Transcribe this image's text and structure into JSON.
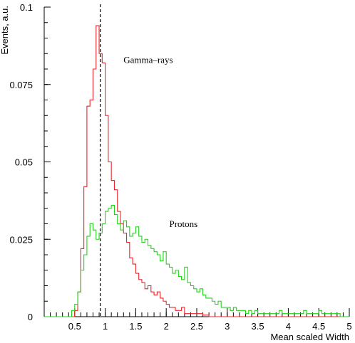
{
  "chart_data": {
    "type": "line",
    "style": "step-histogram",
    "title": "",
    "xlabel": "Mean scaled Width",
    "ylabel": "Events, a.u.",
    "xlim": [
      0,
      5
    ],
    "ylim": [
      0,
      0.1
    ],
    "x_ticks": [
      "0.5",
      "1",
      "1.5",
      "2",
      "2.5",
      "3",
      "3.5",
      "4",
      "4.5",
      "5"
    ],
    "y_ticks": [
      "0",
      "0.025",
      "0.05",
      "0.075",
      "0.1"
    ],
    "grid": false,
    "legend": "none",
    "bin_width": 0.05,
    "x": [
      0.025,
      0.075,
      0.125,
      0.175,
      0.225,
      0.275,
      0.325,
      0.375,
      0.425,
      0.475,
      0.525,
      0.575,
      0.625,
      0.675,
      0.725,
      0.775,
      0.825,
      0.875,
      0.925,
      0.975,
      1.025,
      1.075,
      1.125,
      1.175,
      1.225,
      1.275,
      1.325,
      1.375,
      1.425,
      1.475,
      1.525,
      1.575,
      1.625,
      1.675,
      1.725,
      1.775,
      1.825,
      1.875,
      1.925,
      1.975,
      2.025,
      2.075,
      2.125,
      2.175,
      2.225,
      2.275,
      2.325,
      2.375,
      2.425,
      2.475,
      2.525,
      2.575,
      2.625,
      2.675,
      2.725,
      2.775,
      2.825,
      2.875,
      2.925,
      2.975,
      3.025,
      3.075,
      3.125,
      3.175,
      3.225,
      3.275,
      3.325,
      3.375,
      3.425,
      3.475,
      3.525,
      3.575,
      3.625,
      3.675,
      3.725,
      3.775,
      3.825,
      3.875,
      3.925,
      3.975,
      4.025,
      4.075,
      4.125,
      4.175,
      4.225,
      4.275,
      4.325,
      4.375,
      4.425,
      4.475,
      4.525,
      4.575,
      4.625,
      4.675,
      4.725,
      4.775,
      4.825,
      4.875,
      4.925,
      4.975
    ],
    "series": [
      {
        "name": "Gamma-rays",
        "color": "#e8262b",
        "values": [
          0,
          0,
          0,
          0,
          0,
          0,
          0,
          0,
          0,
          0,
          0.002,
          0.008,
          0.022,
          0.042,
          0.068,
          0.07,
          0.08,
          0.094,
          0.085,
          0.082,
          0.065,
          0.05,
          0.044,
          0.041,
          0.034,
          0.03,
          0.027,
          0.024,
          0.019,
          0.017,
          0.014,
          0.012,
          0.011,
          0.009,
          0.01,
          0.008,
          0.007,
          0.008,
          0.006,
          0.005,
          0.004,
          0.003,
          0.003,
          0.002,
          0.002,
          0.003,
          0.001,
          0.001,
          0.001,
          0.001,
          0.001,
          0.001,
          0.0005,
          0.0005,
          0,
          0,
          0,
          0,
          0,
          0,
          0,
          0,
          0,
          0,
          0,
          0,
          0,
          0,
          0,
          0,
          0,
          0,
          0,
          0,
          0,
          0,
          0,
          0,
          0,
          0,
          0,
          0,
          0,
          0,
          0,
          0,
          0,
          0,
          0,
          0,
          0,
          0,
          0,
          0,
          0,
          0,
          0,
          0,
          0,
          0
        ]
      },
      {
        "name": "Protons",
        "color": "#22d21c",
        "values": [
          0,
          0,
          0,
          0,
          0,
          0,
          0,
          0,
          0,
          0.002,
          0.004,
          0.008,
          0.015,
          0.02,
          0.026,
          0.03,
          0.028,
          0.025,
          0.027,
          0.03,
          0.034,
          0.035,
          0.036,
          0.033,
          0.03,
          0.028,
          0.031,
          0.029,
          0.026,
          0.027,
          0.029,
          0.026,
          0.024,
          0.025,
          0.023,
          0.022,
          0.021,
          0.02,
          0.018,
          0.021,
          0.017,
          0.016,
          0.014,
          0.015,
          0.013,
          0.012,
          0.016,
          0.011,
          0.01,
          0.009,
          0.008,
          0.009,
          0.007,
          0.006,
          0.006,
          0.005,
          0.004,
          0.005,
          0.003,
          0.003,
          0.003,
          0.002,
          0.003,
          0.002,
          0.002,
          0.002,
          0.001,
          0.002,
          0.001,
          0.002,
          0.001,
          0.001,
          0.001,
          0.001,
          0.001,
          0.001,
          0.001,
          0.002,
          0.001,
          0.001,
          0.001,
          0.001,
          0.001,
          0.001,
          0.001,
          0.002,
          0.001,
          0.001,
          0.001,
          0.001,
          0.002,
          0.001,
          0.001,
          0.001,
          0.001,
          0.001,
          0.001,
          0,
          0,
          0
        ]
      }
    ],
    "reference_line": {
      "x": 0.92,
      "style": "dashed",
      "color": "#000000"
    },
    "annotations": [
      {
        "text": "Gamma–rays",
        "x": 1.3,
        "y": 0.082
      },
      {
        "text": "Protons",
        "x": 2.05,
        "y": 0.029
      }
    ]
  }
}
